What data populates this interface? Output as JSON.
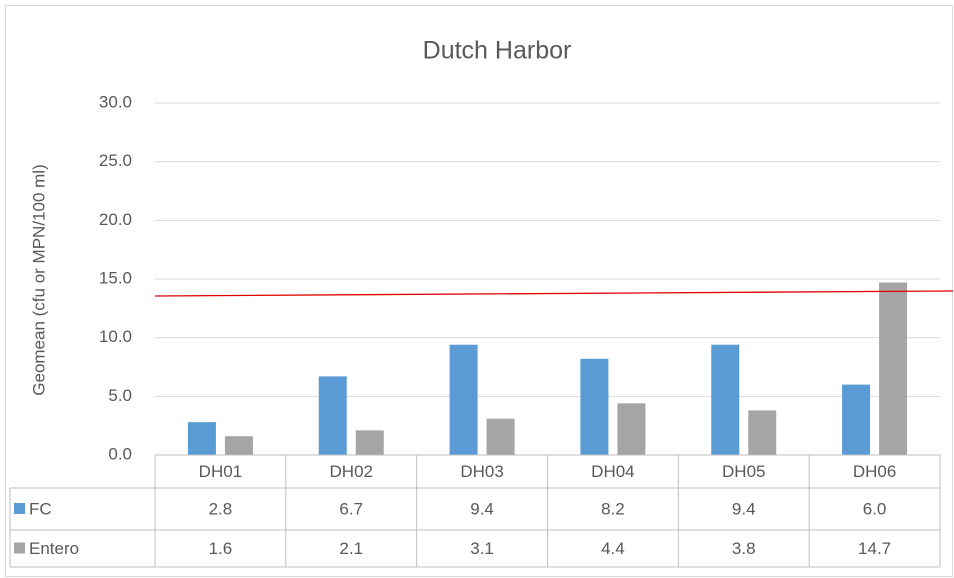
{
  "chart_data": {
    "type": "bar",
    "title": "Dutch Harbor",
    "ylabel": "Geomean (cfu or MPN/100 ml)",
    "categories": [
      "DH01",
      "DH02",
      "DH03",
      "DH04",
      "DH05",
      "DH06"
    ],
    "series": [
      {
        "name": "FC",
        "color": "#5b9bd5",
        "values": [
          2.8,
          6.7,
          9.4,
          8.2,
          9.4,
          6.0
        ],
        "value_labels": [
          "2.8",
          "6.7",
          "9.4",
          "8.2",
          "9.4",
          "6.0"
        ]
      },
      {
        "name": "Entero",
        "color": "#a5a5a5",
        "values": [
          1.6,
          2.1,
          3.1,
          4.4,
          3.8,
          14.7
        ],
        "value_labels": [
          "1.6",
          "2.1",
          "3.1",
          "4.4",
          "3.8",
          "14.7"
        ]
      }
    ],
    "ylim": [
      0,
      30
    ],
    "yticks": [
      {
        "value": 0,
        "label": "0.0"
      },
      {
        "value": 5,
        "label": "5.0"
      },
      {
        "value": 10,
        "label": "10.0"
      },
      {
        "value": 15,
        "label": "15.0"
      },
      {
        "value": 20,
        "label": "20.0"
      },
      {
        "value": 25,
        "label": "25.0"
      },
      {
        "value": 30,
        "label": "30.0"
      }
    ],
    "grid": true,
    "data_table": true
  }
}
